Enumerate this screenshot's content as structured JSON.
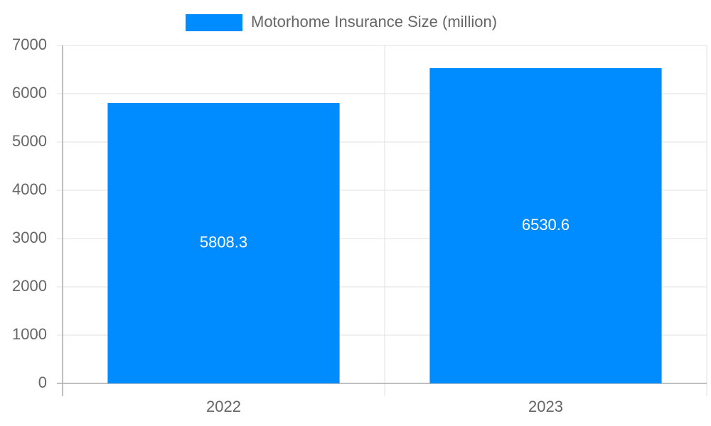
{
  "chart_data": {
    "type": "bar",
    "categories": [
      "2022",
      "2023"
    ],
    "series": [
      {
        "name": "Motorhome Insurance Size (million)",
        "color": "#008cff",
        "values": [
          5808.3,
          6530.6
        ]
      }
    ],
    "ylim": [
      0,
      7000
    ],
    "yticks": [
      0,
      1000,
      2000,
      3000,
      4000,
      5000,
      6000,
      7000
    ],
    "grid": true,
    "legend": "top",
    "value_label_color": "#ffffff"
  }
}
